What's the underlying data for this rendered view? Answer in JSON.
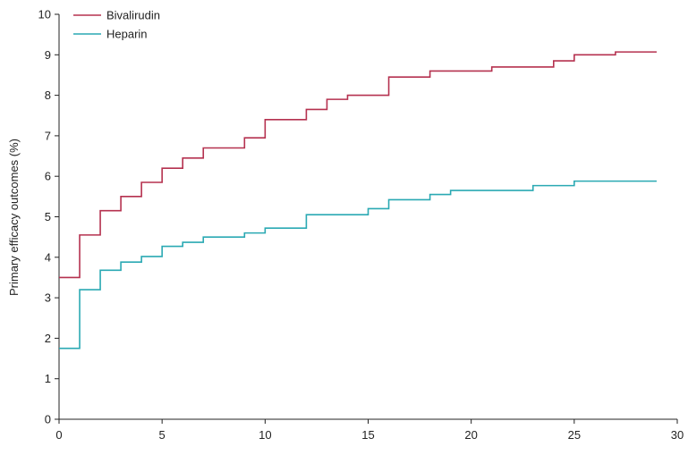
{
  "chart_data": {
    "type": "line",
    "step": true,
    "title": "",
    "xlabel": "",
    "ylabel": "Primary efficacy outcomes (%)",
    "xlim": [
      0,
      30
    ],
    "ylim": [
      0,
      10
    ],
    "xticks": [
      0,
      5,
      10,
      15,
      20,
      25,
      30
    ],
    "yticks": [
      0,
      1,
      2,
      3,
      4,
      5,
      6,
      7,
      8,
      9,
      10
    ],
    "grid": false,
    "legend_position": "top-left",
    "series": [
      {
        "name": "Bivalirudin",
        "color": "#b5314f",
        "points": [
          [
            0,
            3.5
          ],
          [
            1,
            4.55
          ],
          [
            2,
            5.15
          ],
          [
            3,
            5.5
          ],
          [
            4,
            5.85
          ],
          [
            5,
            6.2
          ],
          [
            6,
            6.45
          ],
          [
            7,
            6.7
          ],
          [
            9,
            6.95
          ],
          [
            10,
            7.4
          ],
          [
            12,
            7.65
          ],
          [
            13,
            7.9
          ],
          [
            14,
            8.0
          ],
          [
            16,
            8.45
          ],
          [
            18,
            8.6
          ],
          [
            21,
            8.7
          ],
          [
            24,
            8.85
          ],
          [
            25,
            9.0
          ],
          [
            27,
            9.07
          ],
          [
            29,
            9.07
          ]
        ]
      },
      {
        "name": "Heparin",
        "color": "#2aa9b3",
        "points": [
          [
            0,
            1.75
          ],
          [
            1,
            3.2
          ],
          [
            2,
            3.68
          ],
          [
            3,
            3.88
          ],
          [
            4,
            4.02
          ],
          [
            5,
            4.27
          ],
          [
            6,
            4.37
          ],
          [
            7,
            4.5
          ],
          [
            9,
            4.6
          ],
          [
            10,
            4.72
          ],
          [
            12,
            5.05
          ],
          [
            15,
            5.2
          ],
          [
            16,
            5.42
          ],
          [
            18,
            5.55
          ],
          [
            19,
            5.65
          ],
          [
            23,
            5.77
          ],
          [
            25,
            5.88
          ],
          [
            29,
            5.88
          ]
        ]
      }
    ]
  }
}
